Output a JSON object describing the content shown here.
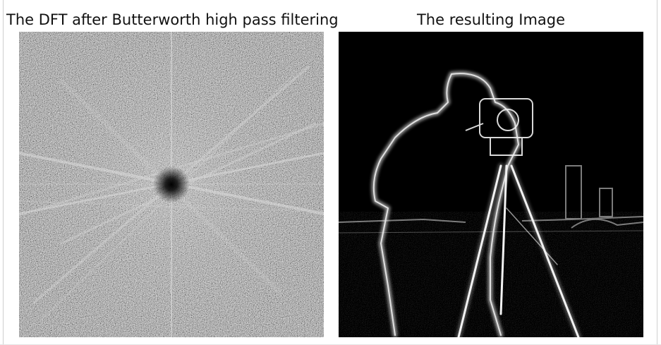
{
  "panels": [
    {
      "title": "The DFT after Butterworth high pass filtering",
      "image": "dft-magnitude-spectrum"
    },
    {
      "title": "The resulting Image",
      "image": "high-pass-filtered-cameraman"
    }
  ],
  "colors": {
    "background": "#ffffff",
    "spectrum_base": "#6a6a6a",
    "edge_glow": "#e6e6e6",
    "image_background": "#000000"
  }
}
